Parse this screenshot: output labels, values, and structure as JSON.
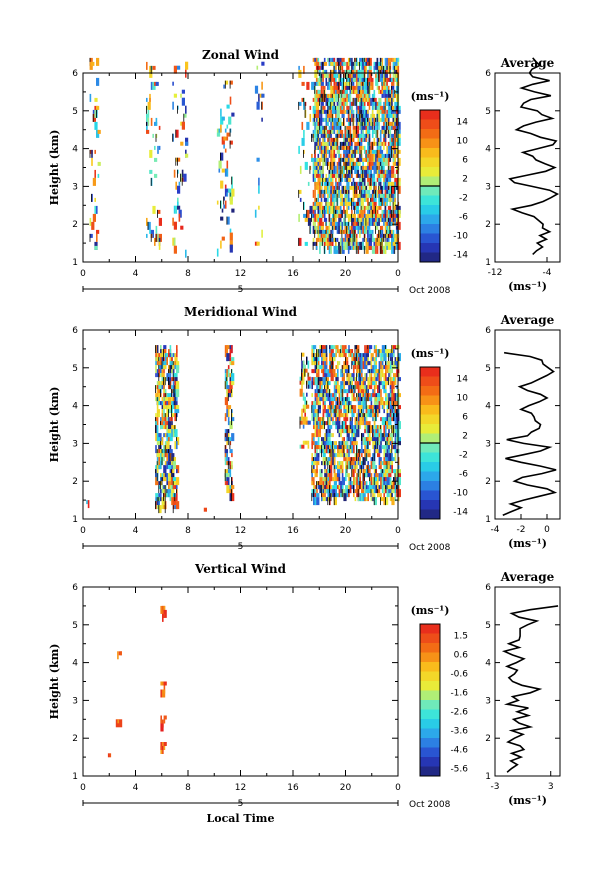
{
  "figure": {
    "x_axis_label": "Local Time",
    "date_label": "Oct 2008",
    "unit_label": "(ms⁻¹)",
    "average_title": "Average",
    "avg_xlabel": "(ms⁻¹)",
    "y_axis_label": "Height (km)",
    "day_label": "5"
  },
  "chart_data": [
    {
      "type": "heatmap",
      "title": "Zonal Wind",
      "xlabel": "",
      "ylabel": "Height (km)",
      "xlim": [
        0,
        24
      ],
      "ylim": [
        1,
        6
      ],
      "x_ticks": [
        "0",
        "4",
        "8",
        "12",
        "16",
        "20",
        "0"
      ],
      "y_ticks": [
        "1",
        "2",
        "3",
        "4",
        "5",
        "6"
      ],
      "colorbar": {
        "unit": "(ms⁻¹)",
        "range": [
          -15,
          15
        ],
        "ticks": [
          "14",
          "10",
          "6",
          "2",
          "-2",
          "-6",
          "-10",
          "-14"
        ]
      },
      "grid": false,
      "avg_profile": {
        "title": "Average",
        "xlabel": "(ms⁻¹)",
        "xlim": [
          -12,
          -2
        ],
        "x_ticks": [
          "-12",
          "-4"
        ],
        "heights": [
          1.2,
          1.3,
          1.4,
          1.5,
          1.6,
          1.7,
          1.8,
          1.9,
          2.0,
          2.1,
          2.2,
          2.3,
          2.4,
          2.5,
          2.6,
          2.7,
          2.8,
          2.9,
          3.0,
          3.1,
          3.2,
          3.3,
          3.4,
          3.5,
          3.6,
          3.7,
          3.8,
          3.9,
          4.0,
          4.1,
          4.2,
          4.3,
          4.4,
          4.5,
          4.6,
          4.7,
          4.8,
          4.9,
          5.0,
          5.1,
          5.2,
          5.3,
          5.4,
          5.5,
          5.6,
          5.7,
          5.8,
          5.9,
          6.0,
          6.1,
          6.2,
          6.3,
          6.4
        ],
        "values": [
          -6.2,
          -5.6,
          -4.7,
          -5.5,
          -4.1,
          -5.1,
          -3.6,
          -4.7,
          -4.6,
          -5.3,
          -6.0,
          -7.8,
          -9.3,
          -6.4,
          -4.6,
          -3.4,
          -2.4,
          -3.6,
          -6.3,
          -9.0,
          -9.7,
          -7.0,
          -4.2,
          -2.8,
          -4.3,
          -5.7,
          -6.2,
          -7.7,
          -5.4,
          -3.1,
          -2.6,
          -5.0,
          -6.5,
          -8.7,
          -7.6,
          -5.7,
          -3.2,
          -4.8,
          -5.5,
          -8.0,
          -7.6,
          -6.5,
          -3.4,
          -5.9,
          -7.9,
          -6.2,
          -3.6,
          -6.2,
          -6.7,
          -6.3,
          -5.1,
          -5.7,
          -6.2
        ]
      }
    },
    {
      "type": "heatmap",
      "title": "Meridional Wind",
      "xlabel": "",
      "ylabel": "Height (km)",
      "xlim": [
        0,
        24
      ],
      "ylim": [
        1,
        6
      ],
      "x_ticks": [
        "0",
        "4",
        "8",
        "12",
        "16",
        "20",
        "0"
      ],
      "y_ticks": [
        "1",
        "2",
        "3",
        "4",
        "5",
        "6"
      ],
      "colorbar": {
        "unit": "(ms⁻¹)",
        "range": [
          -15,
          15
        ],
        "ticks": [
          "14",
          "10",
          "6",
          "2",
          "-2",
          "-6",
          "-10",
          "-14"
        ]
      },
      "grid": false,
      "avg_profile": {
        "title": "Average",
        "xlabel": "(ms⁻¹)",
        "xlim": [
          -4,
          1
        ],
        "x_ticks": [
          "-4",
          "-2",
          "0"
        ],
        "heights": [
          1.1,
          1.2,
          1.3,
          1.4,
          1.5,
          1.6,
          1.7,
          1.8,
          1.9,
          2.0,
          2.1,
          2.2,
          2.3,
          2.4,
          2.5,
          2.6,
          2.7,
          2.8,
          2.9,
          3.0,
          3.1,
          3.2,
          3.3,
          3.4,
          3.5,
          3.6,
          3.7,
          3.8,
          3.9,
          4.0,
          4.1,
          4.2,
          4.3,
          4.4,
          4.5,
          4.6,
          4.7,
          4.8,
          4.9,
          5.0,
          5.1,
          5.2,
          5.3,
          5.4
        ],
        "values": [
          -3.4,
          -2.7,
          -2.0,
          -2.8,
          -1.8,
          -0.6,
          0.6,
          0.0,
          -1.5,
          -2.5,
          -1.9,
          -0.4,
          0.7,
          -0.5,
          -2.0,
          -3.2,
          -1.8,
          -0.5,
          0.2,
          -1.8,
          -3.1,
          -1.5,
          -1.2,
          -0.6,
          -0.5,
          -0.9,
          -1.0,
          -1.2,
          -2.0,
          -1.4,
          -0.6,
          0.0,
          -0.5,
          -1.5,
          -2.1,
          -1.2,
          -0.6,
          0.0,
          0.5,
          0.1,
          -0.3,
          -0.4,
          -1.3,
          -3.3
        ]
      }
    },
    {
      "type": "heatmap",
      "title": "Vertical Wind",
      "xlabel": "Local Time",
      "ylabel": "Height (km)",
      "xlim": [
        0,
        24
      ],
      "ylim": [
        1,
        6
      ],
      "x_ticks": [
        "0",
        "4",
        "8",
        "12",
        "16",
        "20",
        "0"
      ],
      "y_ticks": [
        "1",
        "2",
        "3",
        "4",
        "5",
        "6"
      ],
      "colorbar": {
        "unit": "(ms⁻¹)",
        "range": [
          -6.0,
          2.0
        ],
        "ticks": [
          "1.5",
          "0.6",
          "-0.6",
          "-1.6",
          "-2.6",
          "-3.6",
          "-4.6",
          "-5.6"
        ]
      },
      "grid": false,
      "avg_profile": {
        "title": "Average",
        "xlabel": "(ms⁻¹)",
        "xlim": [
          -3,
          4
        ],
        "x_ticks": [
          "-3",
          "3"
        ],
        "heights": [
          1.1,
          1.2,
          1.3,
          1.4,
          1.5,
          1.6,
          1.7,
          1.8,
          1.9,
          2.0,
          2.1,
          2.2,
          2.3,
          2.4,
          2.5,
          2.6,
          2.7,
          2.8,
          2.9,
          3.0,
          3.1,
          3.2,
          3.3,
          3.4,
          3.5,
          3.6,
          3.7,
          3.8,
          3.9,
          4.0,
          4.1,
          4.2,
          4.3,
          4.4,
          4.5,
          4.6,
          4.7,
          4.8,
          4.9,
          5.0,
          5.1,
          5.2,
          5.3,
          5.4,
          5.5
        ],
        "values": [
          -1.7,
          -1.2,
          -0.6,
          -1.3,
          -0.2,
          -1.2,
          0.1,
          -0.3,
          -1.6,
          -0.9,
          0.0,
          -1.2,
          0.8,
          -0.4,
          -1.0,
          0.6,
          -0.6,
          0.6,
          -1.7,
          -0.5,
          -1.1,
          0.8,
          1.8,
          -0.1,
          -1.1,
          -1.5,
          -0.9,
          -0.6,
          -1.7,
          -0.7,
          0.1,
          -1.1,
          -2.0,
          -0.4,
          -1.5,
          -0.4,
          -0.3,
          -0.3,
          -0.3,
          0.5,
          1.5,
          -0.4,
          -1.2,
          0.8,
          3.8
        ]
      }
    }
  ]
}
